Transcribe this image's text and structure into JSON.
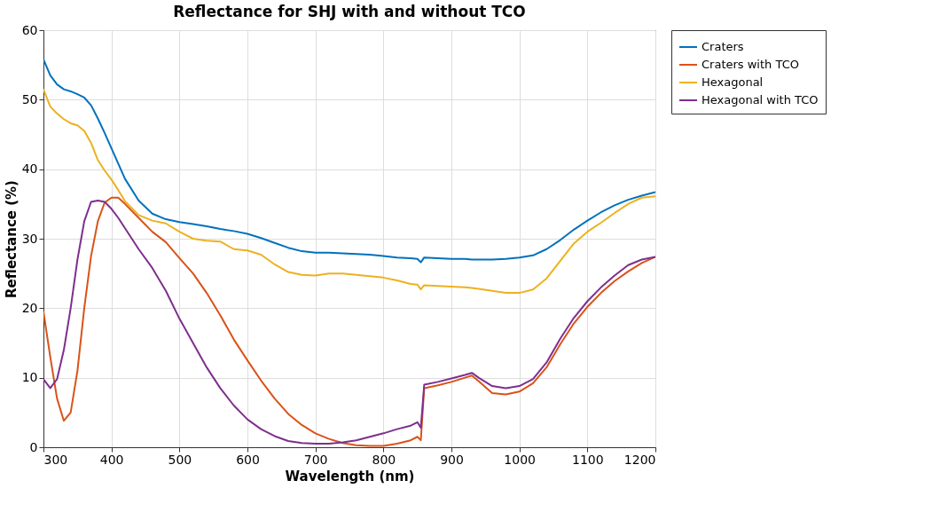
{
  "chart_data": {
    "type": "line",
    "title": "Reflectance for SHJ with and without TCO",
    "xlabel": "Wavelength (nm)",
    "ylabel": "Reflectance (%)",
    "x": [
      300,
      310,
      320,
      330,
      340,
      350,
      360,
      370,
      380,
      390,
      400,
      410,
      420,
      440,
      460,
      480,
      500,
      520,
      540,
      560,
      580,
      600,
      620,
      640,
      660,
      680,
      700,
      720,
      740,
      760,
      780,
      800,
      820,
      840,
      850,
      855,
      860,
      880,
      900,
      920,
      930,
      940,
      960,
      980,
      1000,
      1020,
      1040,
      1060,
      1080,
      1100,
      1120,
      1140,
      1160,
      1180,
      1200
    ],
    "series": [
      {
        "name": "Craters",
        "color": "#0072bd",
        "values": [
          55.8,
          53.5,
          52.2,
          51.5,
          51.2,
          50.8,
          50.3,
          49.2,
          47.3,
          45.2,
          43,
          40.8,
          38.6,
          35.5,
          33.6,
          32.8,
          32.4,
          32.1,
          31.8,
          31.4,
          31.1,
          30.7,
          30.1,
          29.4,
          28.7,
          28.2,
          28.0,
          28.0,
          27.9,
          27.8,
          27.7,
          27.5,
          27.3,
          27.2,
          27.1,
          26.6,
          27.3,
          27.2,
          27.1,
          27.1,
          27.0,
          27.0,
          27.0,
          27.1,
          27.3,
          27.6,
          28.5,
          29.8,
          31.3,
          32.6,
          33.8,
          34.8,
          35.6,
          36.2,
          36.7
        ]
      },
      {
        "name": "Craters with TCO",
        "color": "#d95319",
        "values": [
          19.5,
          13,
          7,
          3.8,
          5,
          11,
          20,
          27.5,
          32.5,
          35.2,
          35.9,
          35.9,
          35,
          33,
          31,
          29.5,
          27.2,
          25,
          22.2,
          19,
          15.5,
          12.5,
          9.6,
          7,
          4.8,
          3.2,
          2.0,
          1.2,
          0.6,
          0.3,
          0.2,
          0.2,
          0.5,
          1.0,
          1.5,
          1.0,
          8.5,
          8.9,
          9.4,
          10.0,
          10.3,
          9.5,
          7.8,
          7.6,
          8.0,
          9.2,
          11.5,
          14.8,
          17.8,
          20.2,
          22.2,
          23.9,
          25.3,
          26.5,
          27.4
        ]
      },
      {
        "name": "Hexagonal",
        "color": "#edb120",
        "values": [
          51.5,
          49,
          48,
          47.2,
          46.6,
          46.3,
          45.5,
          43.8,
          41.3,
          39.8,
          38.5,
          37,
          35.4,
          33.4,
          32.6,
          32.2,
          31,
          30,
          29.7,
          29.6,
          28.5,
          28.3,
          27.7,
          26.3,
          25.2,
          24.8,
          24.7,
          25,
          25,
          24.8,
          24.6,
          24.4,
          24.0,
          23.5,
          23.4,
          22.7,
          23.3,
          23.2,
          23.1,
          23.0,
          22.9,
          22.8,
          22.5,
          22.2,
          22.2,
          22.7,
          24.3,
          26.8,
          29.3,
          31,
          32.3,
          33.7,
          35.0,
          35.9,
          36.1
        ]
      },
      {
        "name": "Hexagonal with TCO",
        "color": "#7e2f8e",
        "values": [
          9.8,
          8.5,
          9.8,
          14,
          20,
          27,
          32.5,
          35.3,
          35.5,
          35.3,
          34.3,
          33,
          31.5,
          28.5,
          25.8,
          22.5,
          18.5,
          15,
          11.5,
          8.5,
          6,
          4,
          2.6,
          1.6,
          0.9,
          0.6,
          0.5,
          0.5,
          0.7,
          1.0,
          1.5,
          2.0,
          2.6,
          3.1,
          3.6,
          2.8,
          9.0,
          9.4,
          9.9,
          10.4,
          10.7,
          10.0,
          8.8,
          8.5,
          8.8,
          9.8,
          12.2,
          15.6,
          18.6,
          21.0,
          23.0,
          24.7,
          26.2,
          27.0,
          27.4
        ]
      }
    ],
    "xlim": [
      300,
      1200
    ],
    "ylim": [
      0,
      60
    ],
    "xticks": [
      300,
      400,
      500,
      600,
      700,
      800,
      900,
      1000,
      1100,
      1200
    ],
    "yticks": [
      0,
      10,
      20,
      30,
      40,
      50,
      60
    ],
    "grid": true,
    "legend": "right",
    "line_style": "solid"
  }
}
